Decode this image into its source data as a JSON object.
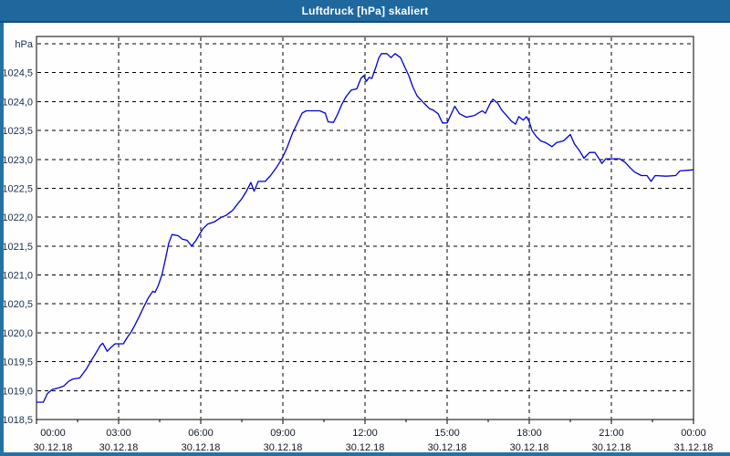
{
  "window": {
    "title": "Luftdruck [hPa] skaliert"
  },
  "colors": {
    "titlebar_bg": "#1f689e",
    "titlebar_text": "#ffffff",
    "window_border": "#2472a4",
    "chart_bg": "#fdfefd",
    "grid": "#000000",
    "line": "#0000cd",
    "y_label_text": "#183050",
    "x_label_text": "#101828"
  },
  "chart_data": {
    "type": "line",
    "title": "Luftdruck [hPa] skaliert",
    "xlabel": "",
    "ylabel": "hPa",
    "ylim": [
      1018.5,
      1025.0
    ],
    "xlim_hours": [
      0,
      24
    ],
    "grid": "dashed",
    "legend": "none",
    "y_ticks": [
      {
        "v": 1025.0,
        "label": "hPa"
      },
      {
        "v": 1024.5,
        "label": "1024,5"
      },
      {
        "v": 1024.0,
        "label": "1024,0"
      },
      {
        "v": 1023.5,
        "label": "1023,5"
      },
      {
        "v": 1023.0,
        "label": "1023,0"
      },
      {
        "v": 1022.5,
        "label": "1022,5"
      },
      {
        "v": 1022.0,
        "label": "1022,0"
      },
      {
        "v": 1021.5,
        "label": "1021,5"
      },
      {
        "v": 1021.0,
        "label": "1021,0"
      },
      {
        "v": 1020.5,
        "label": "1020,5"
      },
      {
        "v": 1020.0,
        "label": "1020,0"
      },
      {
        "v": 1019.5,
        "label": "1019,5"
      },
      {
        "v": 1019.0,
        "label": "1019,0"
      },
      {
        "v": 1018.5,
        "label": "1018,5"
      }
    ],
    "x_ticks": [
      {
        "t": 0,
        "time": "00:00",
        "date": "30.12.18"
      },
      {
        "t": 3,
        "time": "03:00",
        "date": "30.12.18"
      },
      {
        "t": 6,
        "time": "06:00",
        "date": "30.12.18"
      },
      {
        "t": 9,
        "time": "09:00",
        "date": "30.12.18"
      },
      {
        "t": 12,
        "time": "12:00",
        "date": "30.12.18"
      },
      {
        "t": 15,
        "time": "15:00",
        "date": "30.12.18"
      },
      {
        "t": 18,
        "time": "18:00",
        "date": "30.12.18"
      },
      {
        "t": 21,
        "time": "21:00",
        "date": "30.12.18"
      },
      {
        "t": 24,
        "time": "00:00",
        "date": "31.12.18"
      }
    ],
    "x_minor_step_hours": 1.5,
    "series": [
      {
        "name": "Luftdruck",
        "color": "#0000cd",
        "points": [
          [
            0.0,
            1018.8
          ],
          [
            0.25,
            1018.8
          ],
          [
            0.4,
            1018.95
          ],
          [
            0.58,
            1019.02
          ],
          [
            0.83,
            1019.05
          ],
          [
            1.0,
            1019.08
          ],
          [
            1.17,
            1019.16
          ],
          [
            1.33,
            1019.2
          ],
          [
            1.58,
            1019.22
          ],
          [
            1.83,
            1019.38
          ],
          [
            2.0,
            1019.52
          ],
          [
            2.17,
            1019.65
          ],
          [
            2.33,
            1019.78
          ],
          [
            2.42,
            1019.82
          ],
          [
            2.58,
            1019.68
          ],
          [
            2.75,
            1019.76
          ],
          [
            2.87,
            1019.81
          ],
          [
            3.17,
            1019.81
          ],
          [
            3.33,
            1019.93
          ],
          [
            3.45,
            1020.01
          ],
          [
            3.58,
            1020.12
          ],
          [
            3.75,
            1020.28
          ],
          [
            3.92,
            1020.45
          ],
          [
            4.08,
            1020.6
          ],
          [
            4.25,
            1020.72
          ],
          [
            4.33,
            1020.7
          ],
          [
            4.45,
            1020.82
          ],
          [
            4.58,
            1021.0
          ],
          [
            4.7,
            1021.25
          ],
          [
            4.83,
            1021.55
          ],
          [
            4.95,
            1021.7
          ],
          [
            5.17,
            1021.68
          ],
          [
            5.33,
            1021.62
          ],
          [
            5.5,
            1021.6
          ],
          [
            5.67,
            1021.5
          ],
          [
            5.83,
            1021.6
          ],
          [
            5.95,
            1021.7
          ],
          [
            6.08,
            1021.8
          ],
          [
            6.25,
            1021.88
          ],
          [
            6.5,
            1021.92
          ],
          [
            6.75,
            1022.0
          ],
          [
            6.92,
            1022.03
          ],
          [
            7.17,
            1022.12
          ],
          [
            7.33,
            1022.22
          ],
          [
            7.5,
            1022.32
          ],
          [
            7.67,
            1022.45
          ],
          [
            7.83,
            1022.6
          ],
          [
            7.95,
            1022.45
          ],
          [
            8.1,
            1022.62
          ],
          [
            8.35,
            1022.62
          ],
          [
            8.55,
            1022.72
          ],
          [
            8.75,
            1022.85
          ],
          [
            8.95,
            1023.0
          ],
          [
            9.15,
            1023.2
          ],
          [
            9.35,
            1023.45
          ],
          [
            9.55,
            1023.65
          ],
          [
            9.7,
            1023.8
          ],
          [
            9.85,
            1023.84
          ],
          [
            10.35,
            1023.84
          ],
          [
            10.55,
            1023.8
          ],
          [
            10.65,
            1023.65
          ],
          [
            10.85,
            1023.64
          ],
          [
            11.0,
            1023.78
          ],
          [
            11.15,
            1023.95
          ],
          [
            11.3,
            1024.08
          ],
          [
            11.5,
            1024.2
          ],
          [
            11.7,
            1024.22
          ],
          [
            11.85,
            1024.4
          ],
          [
            11.95,
            1024.45
          ],
          [
            12.05,
            1024.35
          ],
          [
            12.15,
            1024.42
          ],
          [
            12.25,
            1024.4
          ],
          [
            12.4,
            1024.6
          ],
          [
            12.5,
            1024.75
          ],
          [
            12.6,
            1024.83
          ],
          [
            12.8,
            1024.83
          ],
          [
            12.95,
            1024.76
          ],
          [
            13.1,
            1024.83
          ],
          [
            13.3,
            1024.76
          ],
          [
            13.45,
            1024.6
          ],
          [
            13.6,
            1024.45
          ],
          [
            13.75,
            1024.25
          ],
          [
            13.9,
            1024.1
          ],
          [
            14.1,
            1024.0
          ],
          [
            14.35,
            1023.88
          ],
          [
            14.5,
            1023.85
          ],
          [
            14.67,
            1023.79
          ],
          [
            14.83,
            1023.63
          ],
          [
            15.0,
            1023.63
          ],
          [
            15.28,
            1023.92
          ],
          [
            15.45,
            1023.79
          ],
          [
            15.7,
            1023.73
          ],
          [
            16.0,
            1023.76
          ],
          [
            16.28,
            1023.84
          ],
          [
            16.4,
            1023.8
          ],
          [
            16.55,
            1023.95
          ],
          [
            16.67,
            1024.04
          ],
          [
            16.85,
            1023.97
          ],
          [
            17.0,
            1023.85
          ],
          [
            17.17,
            1023.76
          ],
          [
            17.35,
            1023.66
          ],
          [
            17.5,
            1023.61
          ],
          [
            17.62,
            1023.74
          ],
          [
            17.78,
            1023.68
          ],
          [
            17.9,
            1023.74
          ],
          [
            18.0,
            1023.65
          ],
          [
            18.1,
            1023.5
          ],
          [
            18.25,
            1023.4
          ],
          [
            18.42,
            1023.32
          ],
          [
            18.6,
            1023.29
          ],
          [
            18.83,
            1023.22
          ],
          [
            19.0,
            1023.29
          ],
          [
            19.25,
            1023.32
          ],
          [
            19.5,
            1023.43
          ],
          [
            19.65,
            1023.27
          ],
          [
            19.85,
            1023.14
          ],
          [
            20.0,
            1023.02
          ],
          [
            20.2,
            1023.12
          ],
          [
            20.4,
            1023.12
          ],
          [
            20.55,
            1023.01
          ],
          [
            20.65,
            1022.93
          ],
          [
            20.8,
            1023.01
          ],
          [
            21.3,
            1023.01
          ],
          [
            21.5,
            1022.95
          ],
          [
            21.7,
            1022.85
          ],
          [
            21.85,
            1022.78
          ],
          [
            22.1,
            1022.72
          ],
          [
            22.3,
            1022.72
          ],
          [
            22.45,
            1022.62
          ],
          [
            22.6,
            1022.72
          ],
          [
            23.0,
            1022.71
          ],
          [
            23.35,
            1022.72
          ],
          [
            23.5,
            1022.8
          ],
          [
            24.0,
            1022.82
          ]
        ]
      }
    ]
  }
}
